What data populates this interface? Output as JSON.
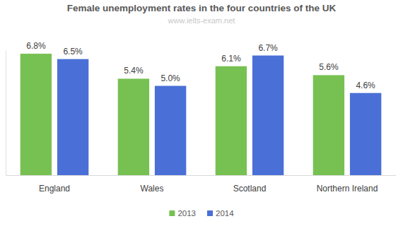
{
  "chart_data": {
    "type": "bar",
    "title": "Female unemployment rates in the four countries of the UK",
    "subtitle": "www.ielts-exam.net",
    "categories": [
      "England",
      "Wales",
      "Scotland",
      "Northern Ireland"
    ],
    "series": [
      {
        "name": "2013",
        "color": "#77c153",
        "values": [
          6.8,
          5.4,
          6.1,
          5.6
        ],
        "value_labels": [
          "6.8%",
          "5.4%",
          "6.1%",
          "5.6%"
        ]
      },
      {
        "name": "2014",
        "color": "#4a6fd6",
        "values": [
          6.5,
          5.0,
          6.7,
          4.6
        ],
        "value_labels": [
          "6.5%",
          "5.0%",
          "6.7%",
          "4.6%"
        ]
      }
    ],
    "ylim": [
      0,
      7
    ],
    "grid": false,
    "data_labels": true,
    "tick_labels": "x",
    "legend": "bottom"
  }
}
